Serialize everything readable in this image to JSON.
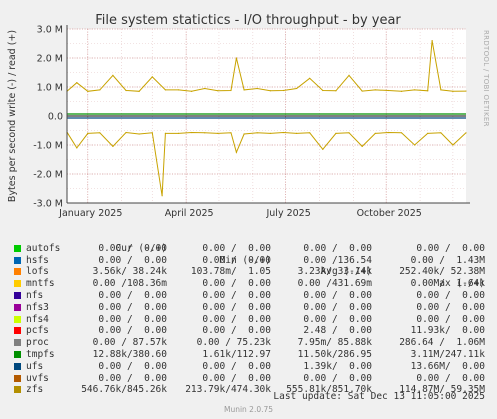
{
  "chart_data": {
    "type": "line",
    "title": "File system statictics - I/O throughput - by year",
    "ylabel": "Bytes per second write (-) / read (+)",
    "side_label": "RRDTOOL / TOBI OETIKER",
    "ylim": [
      -3000000,
      3000000
    ],
    "y_ticks": [
      {
        "value": 3000000,
        "label": "3.0 M"
      },
      {
        "value": 2000000,
        "label": "2.0 M"
      },
      {
        "value": 1000000,
        "label": "1.0 M"
      },
      {
        "value": 0,
        "label": "0.0"
      },
      {
        "value": -1000000,
        "label": "-1.0 M"
      },
      {
        "value": -2000000,
        "label": "-2.0 M"
      },
      {
        "value": -3000000,
        "label": "-3.0 M"
      }
    ],
    "xlim": [
      "2024-12-13",
      "2025-12-13"
    ],
    "x_ticks": [
      {
        "date": "2025-01-01",
        "label": "January 2025"
      },
      {
        "date": "2025-04-01",
        "label": "April 2025"
      },
      {
        "date": "2025-07-01",
        "label": "July 2025"
      },
      {
        "date": "2025-10-01",
        "label": "October 2025"
      }
    ],
    "grid": true,
    "series": [
      {
        "name": "zfs",
        "color": "#c8a300",
        "read": {
          "dates": [
            "2024-12-13",
            "2024-12-22",
            "2025-01-01",
            "2025-01-12",
            "2025-01-24",
            "2025-02-05",
            "2025-02-17",
            "2025-03-01",
            "2025-03-13",
            "2025-03-25",
            "2025-04-06",
            "2025-04-18",
            "2025-04-30",
            "2025-05-12",
            "2025-05-17",
            "2025-05-24",
            "2025-06-05",
            "2025-06-17",
            "2025-06-29",
            "2025-07-11",
            "2025-07-23",
            "2025-08-04",
            "2025-08-16",
            "2025-08-28",
            "2025-09-09",
            "2025-09-21",
            "2025-10-03",
            "2025-10-15",
            "2025-10-27",
            "2025-11-08",
            "2025-11-12",
            "2025-11-20",
            "2025-12-01",
            "2025-12-13"
          ],
          "values": [
            850000,
            1150000,
            850000,
            900000,
            1400000,
            880000,
            850000,
            1350000,
            900000,
            900000,
            850000,
            950000,
            870000,
            880000,
            2000000,
            900000,
            950000,
            870000,
            880000,
            950000,
            1300000,
            880000,
            870000,
            1400000,
            860000,
            900000,
            880000,
            850000,
            900000,
            870000,
            2600000,
            900000,
            850000,
            860000
          ]
        },
        "write": {
          "dates": [
            "2024-12-13",
            "2024-12-22",
            "2025-01-01",
            "2025-01-12",
            "2025-01-24",
            "2025-02-05",
            "2025-02-17",
            "2025-03-01",
            "2025-03-10",
            "2025-03-13",
            "2025-03-25",
            "2025-04-06",
            "2025-04-18",
            "2025-04-30",
            "2025-05-12",
            "2025-05-17",
            "2025-05-24",
            "2025-06-05",
            "2025-06-17",
            "2025-06-29",
            "2025-07-11",
            "2025-07-23",
            "2025-08-04",
            "2025-08-16",
            "2025-08-28",
            "2025-09-09",
            "2025-09-21",
            "2025-10-03",
            "2025-10-15",
            "2025-10-27",
            "2025-11-08",
            "2025-11-20",
            "2025-12-01",
            "2025-12-13"
          ],
          "values": [
            -560000,
            -1100000,
            -600000,
            -580000,
            -1050000,
            -570000,
            -620000,
            -580000,
            -2750000,
            -600000,
            -600000,
            -570000,
            -580000,
            -600000,
            -580000,
            -1250000,
            -620000,
            -580000,
            -600000,
            -570000,
            -600000,
            -580000,
            -1150000,
            -600000,
            -580000,
            -1050000,
            -600000,
            -570000,
            -580000,
            -1000000,
            -600000,
            -580000,
            -1000000,
            -580000
          ]
        }
      }
    ],
    "legend_header": {
      "cur": "Cur (-/+)",
      "min": "Min (-/+)",
      "avg": "Avg (-/+)",
      "max": "Max (-/+)"
    },
    "legend": [
      {
        "name": "autofs",
        "color": "#00cc00",
        "cur": "0.00 /  0.00",
        "min": "0.00 /  0.00",
        "avg": "0.00 /  0.00",
        "max": "0.00 /  0.00"
      },
      {
        "name": "hsfs",
        "color": "#0066b3",
        "cur": "0.00 /  0.00",
        "min": "0.00 /  0.00",
        "avg": "0.00 /136.54",
        "max": "0.00 /  1.43M"
      },
      {
        "name": "lofs",
        "color": "#ff8000",
        "cur": "3.56k/ 38.24k",
        "min": "103.78m/  1.05",
        "avg": "3.23k/ 33.14k",
        "max": "252.40k/ 52.38M"
      },
      {
        "name": "mntfs",
        "color": "#ffcc00",
        "cur": "0.00 /108.36m",
        "min": "0.00 /  0.00",
        "avg": "0.00 /431.69m",
        "max": "0.00 /  1.64k"
      },
      {
        "name": "nfs",
        "color": "#330099",
        "cur": "0.00 /  0.00",
        "min": "0.00 /  0.00",
        "avg": "0.00 /  0.00",
        "max": "0.00 /  0.00"
      },
      {
        "name": "nfs3",
        "color": "#990099",
        "cur": "0.00 /  0.00",
        "min": "0.00 /  0.00",
        "avg": "0.00 /  0.00",
        "max": "0.00 /  0.00"
      },
      {
        "name": "nfs4",
        "color": "#ccff00",
        "cur": "0.00 /  0.00",
        "min": "0.00 /  0.00",
        "avg": "0.00 /  0.00",
        "max": "0.00 /  0.00"
      },
      {
        "name": "pcfs",
        "color": "#ff0000",
        "cur": "0.00 /  0.00",
        "min": "0.00 /  0.00",
        "avg": "2.48 /  0.00",
        "max": "11.93k/  0.00"
      },
      {
        "name": "proc",
        "color": "#808080",
        "cur": "0.00 / 87.57k",
        "min": "0.00 / 75.23k",
        "avg": "7.95m/ 85.88k",
        "max": "286.64 /  1.06M"
      },
      {
        "name": "tmpfs",
        "color": "#008f00",
        "cur": "12.88k/380.60",
        "min": "1.61k/112.97",
        "avg": "11.50k/286.95",
        "max": "3.11M/247.11k"
      },
      {
        "name": "ufs",
        "color": "#00487d",
        "cur": "0.00 /  0.00",
        "min": "0.00 /  0.00",
        "avg": "1.39k/  0.00",
        "max": "13.66M/  0.00"
      },
      {
        "name": "uvfs",
        "color": "#b35a00",
        "cur": "0.00 /  0.00",
        "min": "0.00 /  0.00",
        "avg": "0.00 /  0.00",
        "max": "0.00 /  0.00"
      },
      {
        "name": "zfs",
        "color": "#b38f00",
        "cur": "546.76k/845.26k",
        "min": "213.79k/474.30k",
        "avg": "555.81k/851.70k",
        "max": "114.87M/ 59.35M"
      }
    ],
    "last_update": "Last update: Sat Dec 13 11:05:00 2025",
    "version": "Munin 2.0.75"
  }
}
